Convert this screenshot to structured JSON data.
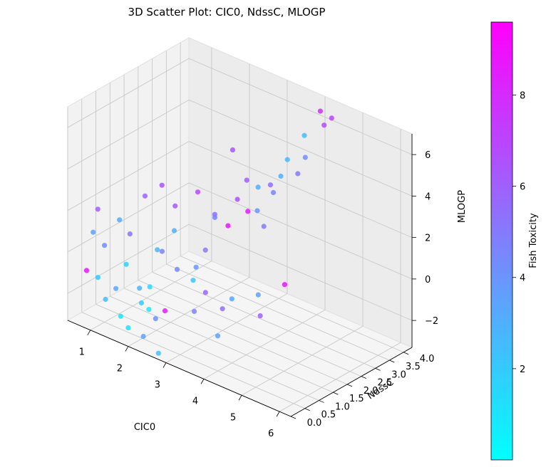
{
  "chart_data": {
    "type": "scatter",
    "title": "3D Scatter Plot: CIC0, NdssC, MLOGP",
    "xlabel": "CIC0",
    "ylabel": "NdssC",
    "zlabel": "MLOGP",
    "colorbar_label": "Fish Toxicity",
    "xlim": [
      0.4,
      6.3
    ],
    "ylim": [
      0,
      4.3
    ],
    "zlim": [
      -3.3,
      7
    ],
    "x_ticks": [
      "1",
      "2",
      "3",
      "4",
      "5",
      "6"
    ],
    "y_ticks": [
      "0.0",
      "0.5",
      "1.0",
      "1.5",
      "2.0",
      "2.5",
      "3.0",
      "3.5",
      "4.0"
    ],
    "z_ticks": [
      "−2",
      "0",
      "2",
      "4",
      "6"
    ],
    "colorbar_ticks": [
      "2",
      "4",
      "6",
      "8"
    ],
    "colorbar_range": [
      0,
      9.6
    ],
    "colormap": [
      "#00ffff",
      "#ff00ff"
    ],
    "grid": true,
    "points": [
      {
        "x": 4.1,
        "y": 4.0,
        "z": 6.6,
        "c": 7.8
      },
      {
        "x": 4.4,
        "y": 4.0,
        "z": 6.5,
        "c": 7.0
      },
      {
        "x": 4.2,
        "y": 4.0,
        "z": 6.0,
        "c": 6.8
      },
      {
        "x": 3.9,
        "y": 3.7,
        "z": 5.5,
        "c": 2.5
      },
      {
        "x": 4.0,
        "y": 3.6,
        "z": 4.6,
        "c": 4.2
      },
      {
        "x": 3.9,
        "y": 3.1,
        "z": 4.8,
        "c": 2.6
      },
      {
        "x": 3.8,
        "y": 3.0,
        "z": 4.0,
        "c": 3.0
      },
      {
        "x": 4.1,
        "y": 3.2,
        "z": 4.2,
        "c": 5.0
      },
      {
        "x": 3.6,
        "y": 2.9,
        "z": 3.5,
        "c": 5.4
      },
      {
        "x": 3.9,
        "y": 2.6,
        "z": 3.6,
        "c": 4.6
      },
      {
        "x": 3.2,
        "y": 3.0,
        "z": 3.0,
        "c": 3.0
      },
      {
        "x": 2.9,
        "y": 3.0,
        "z": 3.1,
        "c": 6.2
      },
      {
        "x": 2.6,
        "y": 2.9,
        "z": 4.4,
        "c": 6.4
      },
      {
        "x": 3.5,
        "y": 2.8,
        "z": 1.5,
        "c": 5.0
      },
      {
        "x": 3.3,
        "y": 2.5,
        "z": 2.3,
        "c": 8.6
      },
      {
        "x": 3.0,
        "y": 2.2,
        "z": 1.6,
        "c": 8.8
      },
      {
        "x": 3.7,
        "y": 2.3,
        "z": 2.8,
        "c": 4.0
      },
      {
        "x": 3.1,
        "y": 2.4,
        "z": 2.8,
        "c": 6.6
      },
      {
        "x": 2.8,
        "y": 2.0,
        "z": 2.0,
        "c": 4.6
      },
      {
        "x": 4.2,
        "y": 2.6,
        "z": -0.6,
        "c": 8.9
      },
      {
        "x": 3.8,
        "y": 2.2,
        "z": -1.1,
        "c": 3.6
      },
      {
        "x": 4.0,
        "y": 2.0,
        "z": -1.8,
        "c": 6.0
      },
      {
        "x": 3.3,
        "y": 1.6,
        "z": -1.7,
        "c": 5.4
      },
      {
        "x": 3.4,
        "y": 1.8,
        "z": -1.3,
        "c": 3.2
      },
      {
        "x": 3.0,
        "y": 1.4,
        "z": -1.0,
        "c": 5.8
      },
      {
        "x": 3.0,
        "y": 1.0,
        "z": -1.6,
        "c": 4.8
      },
      {
        "x": 3.4,
        "y": 1.3,
        "z": -2.7,
        "c": 3.6
      },
      {
        "x": 2.6,
        "y": 0.5,
        "z": -1.5,
        "c": 8.6
      },
      {
        "x": 2.4,
        "y": 0.0,
        "z": -2.5,
        "c": 3.4
      },
      {
        "x": 2.0,
        "y": 0.0,
        "z": -2.4,
        "c": 1.2
      },
      {
        "x": 1.8,
        "y": 0.0,
        "z": -2.0,
        "c": 1.0
      },
      {
        "x": 1.4,
        "y": 0.0,
        "z": -1.5,
        "c": 2.6
      },
      {
        "x": 0.9,
        "y": 0.0,
        "z": -0.5,
        "c": 8.8
      },
      {
        "x": 2.8,
        "y": 0.0,
        "z": -3.0,
        "c": 2.4
      },
      {
        "x": 2.5,
        "y": 0.3,
        "z": -1.8,
        "c": 4.2
      },
      {
        "x": 2.2,
        "y": 0.2,
        "z": -1.2,
        "c": 1.8
      },
      {
        "x": 2.0,
        "y": 0.4,
        "z": -0.8,
        "c": 2.8
      },
      {
        "x": 1.6,
        "y": 0.1,
        "z": -0.9,
        "c": 3.2
      },
      {
        "x": 1.2,
        "y": 0.0,
        "z": -0.6,
        "c": 2.2
      },
      {
        "x": 1.0,
        "y": 0.5,
        "z": 0.4,
        "c": 4.2
      },
      {
        "x": 1.3,
        "y": 1.0,
        "z": 0.8,
        "c": 5.2
      },
      {
        "x": 0.6,
        "y": 0.8,
        "z": 1.6,
        "c": 6.0
      },
      {
        "x": 0.7,
        "y": 0.5,
        "z": 0.8,
        "c": 3.5
      },
      {
        "x": 2.1,
        "y": 1.5,
        "z": 1.2,
        "c": 3.0
      },
      {
        "x": 2.4,
        "y": 1.2,
        "z": -0.2,
        "c": 4.4
      },
      {
        "x": 2.7,
        "y": 1.8,
        "z": 0.5,
        "c": 5.0
      },
      {
        "x": 1.8,
        "y": 1.3,
        "z": 0.2,
        "c": 2.6
      },
      {
        "x": 1.5,
        "y": 0.6,
        "z": -0.2,
        "c": 1.6
      },
      {
        "x": 2.3,
        "y": 0.8,
        "z": 0.9,
        "c": 4.8
      },
      {
        "x": 1.9,
        "y": 1.8,
        "z": 2.0,
        "c": 6.2
      },
      {
        "x": 2.2,
        "y": 2.2,
        "z": 2.6,
        "c": 6.8
      },
      {
        "x": 1.7,
        "y": 1.6,
        "z": 3.0,
        "c": 6.6
      },
      {
        "x": 2.5,
        "y": 2.4,
        "z": 1.6,
        "c": 5.6
      },
      {
        "x": 1.4,
        "y": 1.4,
        "z": 2.4,
        "c": 5.8
      },
      {
        "x": 2.9,
        "y": 1.2,
        "z": 0.3,
        "c": 3.8
      },
      {
        "x": 1.1,
        "y": 0.9,
        "z": 1.4,
        "c": 3.2
      },
      {
        "x": 2.6,
        "y": 1.5,
        "z": -0.8,
        "c": 2.2
      },
      {
        "x": 1.9,
        "y": 0.9,
        "z": -1.2,
        "c": 1.4
      },
      {
        "x": 2.1,
        "y": 0.6,
        "z": -1.9,
        "c": 0.8
      }
    ]
  }
}
